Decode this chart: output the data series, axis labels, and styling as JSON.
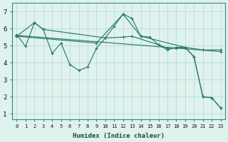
{
  "xlabel": "Humidex (Indice chaleur)",
  "bg_color": "#dff2ee",
  "line_color": "#2a7a6a",
  "grid_color": "#b8ddd7",
  "xlim": [
    -0.5,
    23.5
  ],
  "ylim": [
    0.7,
    7.5
  ],
  "xticks": [
    0,
    1,
    2,
    3,
    4,
    5,
    6,
    7,
    8,
    9,
    10,
    11,
    12,
    13,
    14,
    15,
    16,
    17,
    18,
    19,
    20,
    21,
    22,
    23
  ],
  "yticks": [
    1,
    2,
    3,
    4,
    5,
    6,
    7
  ],
  "series1_x": [
    0,
    1,
    2,
    3,
    4,
    5,
    6,
    7,
    8,
    9,
    10,
    11,
    12,
    13,
    14,
    15,
    16,
    17,
    18,
    19,
    20,
    21,
    22,
    23
  ],
  "series1_y": [
    5.65,
    4.95,
    6.35,
    5.95,
    4.55,
    5.15,
    3.9,
    3.55,
    3.75,
    4.85,
    5.45,
    6.15,
    6.85,
    6.6,
    5.55,
    5.5,
    5.05,
    4.75,
    4.9,
    4.9,
    4.35,
    2.0,
    1.95,
    1.35
  ],
  "series2_x": [
    0,
    2,
    3,
    10,
    12,
    13,
    16,
    17,
    18,
    19,
    21,
    23
  ],
  "series2_y": [
    5.55,
    6.35,
    5.95,
    5.45,
    5.5,
    5.55,
    5.05,
    4.85,
    4.85,
    4.9,
    4.75,
    4.75
  ],
  "series3_x": [
    0,
    23
  ],
  "series3_y": [
    5.6,
    4.65
  ],
  "series4_x": [
    0,
    9,
    12,
    14,
    19,
    20,
    21,
    22,
    23
  ],
  "series4_y": [
    5.55,
    5.15,
    6.85,
    5.55,
    4.9,
    4.35,
    2.0,
    1.95,
    1.35
  ]
}
